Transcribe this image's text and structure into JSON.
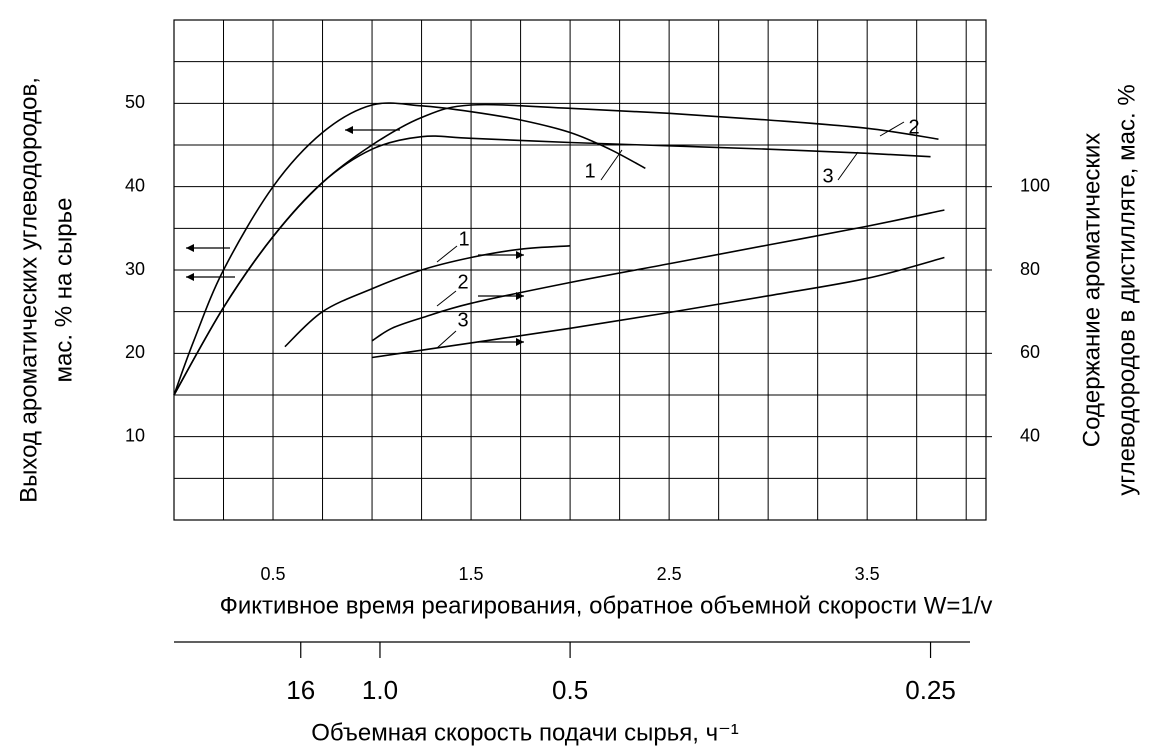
{
  "chart_data": {
    "type": "line",
    "ylabel": [
      "Выход ароматических углеводородов,",
      "мас. % на сырье"
    ],
    "y2label": [
      "Содержание ароматических",
      "углеводородов в дистилляте, мас. %"
    ],
    "xlabel": "Фиктивное время реагирования, обратное объемной скорости W=1/v",
    "x2label": "Объемная скорость подачи сырья, ч⁻¹",
    "xlim": [
      0,
      4.1
    ],
    "ylim": [
      0,
      60
    ],
    "y2lim": [
      20,
      140
    ],
    "xticks": [
      0.5,
      1.5,
      2.5,
      3.5
    ],
    "yticks": [
      10,
      20,
      30,
      40,
      50
    ],
    "y2ticks": [
      40,
      60,
      80,
      100
    ],
    "x2ticks": [
      {
        "value": 0.64,
        "label": "16"
      },
      {
        "value": 1.04,
        "label": "1.0"
      },
      {
        "value": 2.0,
        "label": "0.5"
      },
      {
        "value": 3.82,
        "label": "0.25"
      }
    ],
    "xgrid": [
      0,
      0.25,
      0.5,
      0.75,
      1,
      1.25,
      1.5,
      1.75,
      2,
      2.25,
      2.5,
      2.75,
      3,
      3.25,
      3.5,
      3.75,
      4
    ],
    "ygrid": [
      5,
      10,
      15,
      20,
      25,
      30,
      35,
      40,
      45,
      50,
      55
    ],
    "grid": true,
    "color": "#000000",
    "series": [
      {
        "name": "1",
        "x": [
          0,
          0.1,
          0.25,
          0.5,
          0.75,
          1.0,
          1.25,
          1.5,
          1.75,
          2.0,
          2.2,
          2.38
        ],
        "values": [
          15,
          21.5,
          30,
          40,
          46.5,
          49.8,
          49.7,
          49,
          48,
          46.5,
          44.5,
          42.2
        ]
      },
      {
        "name": "2",
        "x": [
          0,
          0.25,
          0.5,
          0.75,
          1.0,
          1.25,
          1.5,
          2.0,
          2.5,
          3.0,
          3.5,
          3.86
        ],
        "values": [
          15,
          25.5,
          34,
          40.5,
          45,
          48.3,
          49.8,
          49.4,
          48.8,
          48,
          47,
          45.7
        ]
      },
      {
        "name": "3",
        "x": [
          0,
          0.25,
          0.5,
          0.75,
          1.0,
          1.25,
          1.5,
          2.0,
          2.5,
          3.0,
          3.5,
          3.82
        ],
        "values": [
          15,
          25.5,
          34,
          40.5,
          44.5,
          46,
          45.8,
          45.3,
          44.9,
          44.5,
          44,
          43.6
        ]
      },
      {
        "name": "1",
        "axis": "y2",
        "x": [
          0.56,
          0.75,
          1.0,
          1.25,
          1.5,
          1.75,
          2.0
        ],
        "values": [
          61.6,
          70,
          75.5,
          80,
          83,
          85,
          85.8
        ]
      },
      {
        "name": "2",
        "axis": "y2",
        "x": [
          1.0,
          1.1,
          1.25,
          1.5,
          2.0,
          2.5,
          3.0,
          3.5,
          3.89
        ],
        "values": [
          63,
          66,
          68.5,
          72,
          77,
          81.5,
          86,
          90.5,
          94.4
        ]
      },
      {
        "name": "3",
        "axis": "y2",
        "x": [
          1.0,
          1.5,
          2.0,
          2.5,
          3.0,
          3.5,
          3.89
        ],
        "values": [
          59,
          62.5,
          66,
          69.8,
          73.8,
          78,
          83
        ]
      }
    ]
  }
}
